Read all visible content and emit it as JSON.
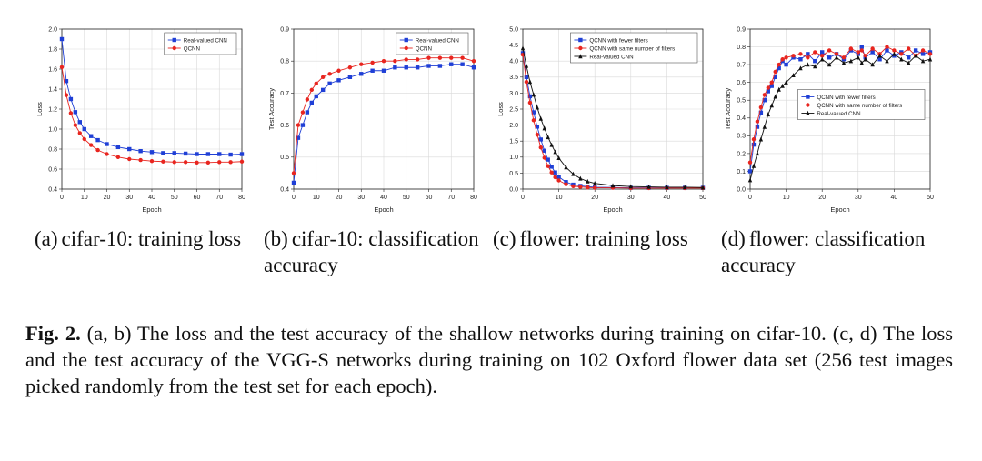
{
  "figure": {
    "caption_label": "Fig. 2.",
    "caption_text": "(a, b) The loss and the test accuracy of the shallow networks during training on cifar-10. (c, d) The loss and the test accuracy of the VGG-S networks during training on 102 Oxford flower data set (256 test images picked randomly from the test set for each epoch).",
    "subcaptions": [
      {
        "tag": "(a)",
        "text": "cifar-10: training loss"
      },
      {
        "tag": "(b)",
        "text": "cifar-10: classification accuracy"
      },
      {
        "tag": "(c)",
        "text": "flower: training loss"
      },
      {
        "tag": "(d)",
        "text": "flower: classification accuracy"
      }
    ]
  },
  "chart_data": [
    {
      "type": "line",
      "id": "a",
      "xlabel": "Epoch",
      "ylabel": "Loss",
      "xlim": [
        0,
        80
      ],
      "ylim": [
        0.4,
        2.0
      ],
      "xticks": [
        0,
        10,
        20,
        30,
        40,
        50,
        60,
        70,
        80
      ],
      "yticks": [
        0.4,
        0.6,
        0.8,
        1.0,
        1.2,
        1.4,
        1.6,
        1.8,
        2.0
      ],
      "ytick_labels": [
        "0.4",
        "0.6",
        "0.8",
        "1.0",
        "1.2",
        "1.4",
        "1.6",
        "1.8",
        "2.0"
      ],
      "grid": true,
      "legend_position": "top-right",
      "series": [
        {
          "name": "Real-valued CNN",
          "color": "#1f3fd6",
          "marker": "square",
          "x": [
            0,
            2,
            4,
            6,
            8,
            10,
            13,
            16,
            20,
            25,
            30,
            35,
            40,
            45,
            50,
            55,
            60,
            65,
            70,
            75,
            80
          ],
          "y": [
            1.9,
            1.48,
            1.3,
            1.17,
            1.07,
            1.0,
            0.93,
            0.89,
            0.85,
            0.82,
            0.8,
            0.78,
            0.77,
            0.76,
            0.76,
            0.755,
            0.75,
            0.75,
            0.75,
            0.745,
            0.75
          ]
        },
        {
          "name": "QCNN",
          "color": "#e8251f",
          "marker": "circle",
          "x": [
            0,
            2,
            4,
            6,
            8,
            10,
            13,
            16,
            20,
            25,
            30,
            35,
            40,
            45,
            50,
            55,
            60,
            65,
            70,
            75,
            80
          ],
          "y": [
            1.62,
            1.34,
            1.16,
            1.04,
            0.96,
            0.9,
            0.84,
            0.79,
            0.75,
            0.72,
            0.7,
            0.69,
            0.68,
            0.675,
            0.67,
            0.67,
            0.665,
            0.665,
            0.67,
            0.67,
            0.675
          ]
        }
      ]
    },
    {
      "type": "line",
      "id": "b",
      "xlabel": "Epoch",
      "ylabel": "Test Accuracy",
      "xlim": [
        0,
        80
      ],
      "ylim": [
        0.4,
        0.9
      ],
      "xticks": [
        0,
        10,
        20,
        30,
        40,
        50,
        60,
        70,
        80
      ],
      "yticks": [
        0.4,
        0.5,
        0.6,
        0.7,
        0.8,
        0.9
      ],
      "ytick_labels": [
        "0.4",
        "0.5",
        "0.6",
        "0.7",
        "0.8",
        "0.9"
      ],
      "grid": true,
      "legend_position": "top-right",
      "series": [
        {
          "name": "Real-valued CNN",
          "color": "#1f3fd6",
          "marker": "square",
          "x": [
            0,
            2,
            4,
            6,
            8,
            10,
            13,
            16,
            20,
            25,
            30,
            35,
            40,
            45,
            50,
            55,
            60,
            65,
            70,
            75,
            80
          ],
          "y": [
            0.42,
            0.56,
            0.6,
            0.64,
            0.67,
            0.69,
            0.71,
            0.73,
            0.74,
            0.75,
            0.76,
            0.77,
            0.77,
            0.78,
            0.78,
            0.78,
            0.785,
            0.785,
            0.79,
            0.79,
            0.78
          ]
        },
        {
          "name": "QCNN",
          "color": "#e8251f",
          "marker": "circle",
          "x": [
            0,
            2,
            4,
            6,
            8,
            10,
            13,
            16,
            20,
            25,
            30,
            35,
            40,
            45,
            50,
            55,
            60,
            65,
            70,
            75,
            80
          ],
          "y": [
            0.45,
            0.6,
            0.64,
            0.68,
            0.71,
            0.73,
            0.75,
            0.76,
            0.77,
            0.78,
            0.79,
            0.795,
            0.8,
            0.8,
            0.805,
            0.805,
            0.81,
            0.81,
            0.81,
            0.81,
            0.8
          ]
        }
      ]
    },
    {
      "type": "line",
      "id": "c",
      "xlabel": "Epoch",
      "ylabel": "Loss",
      "xlim": [
        0,
        50
      ],
      "ylim": [
        0,
        5.0
      ],
      "xticks": [
        0,
        10,
        20,
        30,
        40,
        50
      ],
      "yticks": [
        0,
        0.5,
        1.0,
        1.5,
        2.0,
        2.5,
        3.0,
        3.5,
        4.0,
        4.5,
        5.0
      ],
      "ytick_labels": [
        "0.0",
        "0.5",
        "1.0",
        "1.5",
        "2.0",
        "2.5",
        "3.0",
        "3.5",
        "4.0",
        "4.5",
        "5.0"
      ],
      "grid": true,
      "legend_position": "top-right",
      "series": [
        {
          "name": "QCNN with fewer filters",
          "color": "#1f3fd6",
          "marker": "square",
          "x": [
            0,
            1,
            2,
            3,
            4,
            5,
            6,
            7,
            8,
            9,
            10,
            12,
            14,
            16,
            18,
            20,
            25,
            30,
            35,
            40,
            45,
            50
          ],
          "y": [
            4.25,
            3.5,
            2.9,
            2.4,
            1.95,
            1.55,
            1.2,
            0.92,
            0.7,
            0.52,
            0.38,
            0.22,
            0.14,
            0.1,
            0.08,
            0.06,
            0.05,
            0.04,
            0.04,
            0.04,
            0.04,
            0.04
          ]
        },
        {
          "name": "QCNN with same number of filters",
          "color": "#e8251f",
          "marker": "circle",
          "x": [
            0,
            1,
            2,
            3,
            4,
            5,
            6,
            7,
            8,
            9,
            10,
            12,
            14,
            16,
            18,
            20,
            25,
            30,
            35,
            40,
            45,
            50
          ],
          "y": [
            4.2,
            3.35,
            2.7,
            2.15,
            1.7,
            1.3,
            0.98,
            0.72,
            0.52,
            0.37,
            0.27,
            0.15,
            0.09,
            0.07,
            0.05,
            0.04,
            0.04,
            0.03,
            0.03,
            0.03,
            0.03,
            0.03
          ]
        },
        {
          "name": "Real-valued CNN",
          "color": "#111111",
          "marker": "triangle",
          "x": [
            0,
            1,
            2,
            3,
            4,
            5,
            6,
            7,
            8,
            9,
            10,
            12,
            14,
            16,
            18,
            20,
            25,
            30,
            35,
            40,
            45,
            50
          ],
          "y": [
            4.4,
            3.85,
            3.35,
            2.95,
            2.55,
            2.2,
            1.9,
            1.62,
            1.38,
            1.16,
            0.97,
            0.68,
            0.47,
            0.33,
            0.24,
            0.18,
            0.11,
            0.08,
            0.07,
            0.06,
            0.06,
            0.05
          ]
        }
      ]
    },
    {
      "type": "line",
      "id": "d",
      "xlabel": "Epoch",
      "ylabel": "Test Accuracy",
      "xlim": [
        0,
        50
      ],
      "ylim": [
        0,
        0.9
      ],
      "xticks": [
        0,
        10,
        20,
        30,
        40,
        50
      ],
      "yticks": [
        0,
        0.1,
        0.2,
        0.3,
        0.4,
        0.5,
        0.6,
        0.7,
        0.8,
        0.9
      ],
      "ytick_labels": [
        "0.0",
        "0.1",
        "0.2",
        "0.3",
        "0.4",
        "0.5",
        "0.6",
        "0.7",
        "0.8",
        "0.9"
      ],
      "grid": true,
      "legend_position": "center-right",
      "series": [
        {
          "name": "QCNN with fewer filters",
          "color": "#1f3fd6",
          "marker": "square",
          "x": [
            0,
            1,
            2,
            3,
            4,
            5,
            6,
            7,
            8,
            9,
            10,
            12,
            14,
            16,
            18,
            20,
            22,
            24,
            26,
            28,
            30,
            31,
            32,
            34,
            36,
            38,
            40,
            42,
            44,
            46,
            48,
            50
          ],
          "y": [
            0.1,
            0.25,
            0.35,
            0.43,
            0.5,
            0.55,
            0.58,
            0.63,
            0.68,
            0.72,
            0.7,
            0.74,
            0.73,
            0.76,
            0.72,
            0.77,
            0.74,
            0.76,
            0.73,
            0.78,
            0.76,
            0.8,
            0.74,
            0.77,
            0.73,
            0.78,
            0.75,
            0.77,
            0.74,
            0.78,
            0.76,
            0.77
          ]
        },
        {
          "name": "QCNN with same number of filters",
          "color": "#e8251f",
          "marker": "circle",
          "x": [
            0,
            1,
            2,
            3,
            4,
            5,
            6,
            7,
            8,
            9,
            10,
            12,
            14,
            16,
            18,
            20,
            22,
            24,
            26,
            28,
            30,
            31,
            32,
            34,
            36,
            38,
            40,
            42,
            44,
            46,
            48,
            50
          ],
          "y": [
            0.15,
            0.28,
            0.38,
            0.46,
            0.53,
            0.57,
            0.6,
            0.66,
            0.7,
            0.73,
            0.74,
            0.75,
            0.76,
            0.74,
            0.77,
            0.75,
            0.78,
            0.76,
            0.74,
            0.79,
            0.77,
            0.78,
            0.75,
            0.79,
            0.76,
            0.8,
            0.78,
            0.76,
            0.79,
            0.75,
            0.78,
            0.76
          ]
        },
        {
          "name": "Real-valued CNN",
          "color": "#111111",
          "marker": "triangle",
          "x": [
            0,
            1,
            2,
            3,
            4,
            5,
            6,
            7,
            8,
            9,
            10,
            12,
            14,
            16,
            18,
            20,
            22,
            24,
            26,
            28,
            30,
            31,
            32,
            34,
            36,
            38,
            40,
            42,
            44,
            46,
            48,
            50
          ],
          "y": [
            0.05,
            0.13,
            0.2,
            0.28,
            0.35,
            0.42,
            0.47,
            0.52,
            0.56,
            0.58,
            0.6,
            0.64,
            0.68,
            0.7,
            0.69,
            0.73,
            0.7,
            0.74,
            0.71,
            0.72,
            0.74,
            0.71,
            0.73,
            0.7,
            0.75,
            0.72,
            0.76,
            0.73,
            0.71,
            0.75,
            0.72,
            0.73
          ]
        }
      ]
    }
  ]
}
